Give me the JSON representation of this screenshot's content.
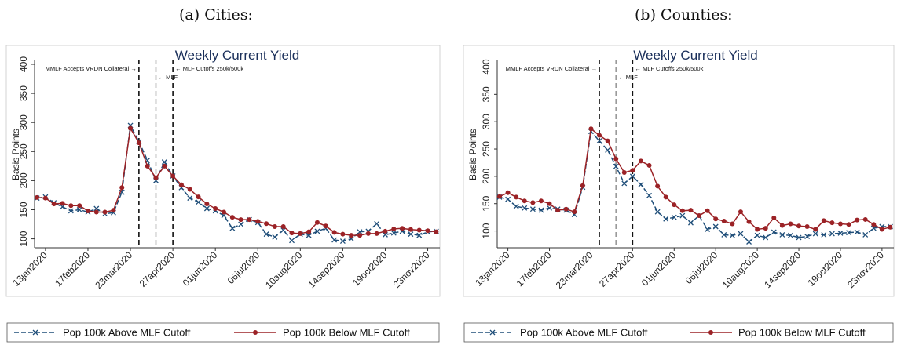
{
  "panels": [
    {
      "caption": "(a) Cities:"
    },
    {
      "caption": "(b) Counties:"
    }
  ],
  "colors": {
    "above": "#1f4e79",
    "below": "#9b2226",
    "title": "#1a2f5a",
    "event_dark": "#111111",
    "event_light": "#9a9a9a"
  },
  "chart_data": [
    {
      "type": "line",
      "title": "Weekly Current Yield",
      "ylabel": "Basis Points",
      "xlabel": "",
      "ylim": [
        90,
        400
      ],
      "yticks": [
        100,
        150,
        200,
        250,
        300,
        350,
        400
      ],
      "x_ticks": [
        "13jan2020",
        "17feb2020",
        "23mar2020",
        "27apr2020",
        "01jun2020",
        "06jul2020",
        "10aug2020",
        "14sep2020",
        "19oct2020",
        "23nov2020"
      ],
      "x": [
        "06jan2020",
        "13jan2020",
        "20jan2020",
        "27jan2020",
        "03feb2020",
        "10feb2020",
        "17feb2020",
        "24feb2020",
        "02mar2020",
        "09mar2020",
        "16mar2020",
        "23mar2020",
        "30mar2020",
        "06apr2020",
        "13apr2020",
        "20apr2020",
        "27apr2020",
        "04may2020",
        "11may2020",
        "18may2020",
        "25may2020",
        "01jun2020",
        "08jun2020",
        "15jun2020",
        "22jun2020",
        "29jun2020",
        "06jul2020",
        "13jul2020",
        "20jul2020",
        "27jul2020",
        "03aug2020",
        "10aug2020",
        "17aug2020",
        "24aug2020",
        "31aug2020",
        "07sep2020",
        "14sep2020",
        "21sep2020",
        "28sep2020",
        "05oct2020",
        "12oct2020",
        "19oct2020",
        "26oct2020",
        "02nov2020",
        "09nov2020",
        "16nov2020",
        "23nov2020",
        "30nov2020"
      ],
      "grid": false,
      "legend_position": "bottom",
      "event_lines": [
        {
          "date": "30mar2020",
          "label": "MMLF Accepts VRDN Collateral →",
          "style": "dark",
          "side": "left"
        },
        {
          "date": "13apr2020",
          "label": "← MLF",
          "style": "light",
          "side": "right"
        },
        {
          "date": "27apr2020",
          "label": "← MLF Cutoffs 250k/500k",
          "style": "dark",
          "side": "right"
        }
      ],
      "series": [
        {
          "name": "Pop 100k Above MLF Cutoff",
          "marker": "x",
          "dash": true,
          "values": [
            170,
            172,
            162,
            155,
            148,
            150,
            146,
            152,
            143,
            145,
            180,
            295,
            267,
            235,
            200,
            232,
            208,
            188,
            170,
            163,
            152,
            148,
            140,
            118,
            125,
            133,
            128,
            108,
            103,
            115,
            97,
            108,
            106,
            113,
            118,
            98,
            96,
            100,
            112,
            113,
            126,
            107,
            110,
            113,
            108,
            106,
            112,
            113
          ]
        },
        {
          "name": "Pop 100k Below MLF Cutoff",
          "marker": "o",
          "dash": false,
          "values": [
            171,
            170,
            160,
            161,
            157,
            157,
            148,
            146,
            146,
            149,
            188,
            290,
            265,
            225,
            205,
            225,
            208,
            193,
            185,
            172,
            160,
            152,
            146,
            137,
            133,
            133,
            130,
            126,
            121,
            121,
            110,
            109,
            112,
            128,
            122,
            111,
            108,
            106,
            106,
            109,
            109,
            113,
            117,
            118,
            116,
            115,
            114,
            112
          ]
        }
      ]
    },
    {
      "type": "line",
      "title": "Weekly Current Yield",
      "ylabel": "Basis Points",
      "xlabel": "",
      "ylim": [
        75,
        405
      ],
      "yticks": [
        100,
        150,
        200,
        250,
        300,
        350,
        400
      ],
      "x_ticks": [
        "13jan2020",
        "17feb2020",
        "23mar2020",
        "27apr2020",
        "01jun2020",
        "06jul2020",
        "10aug2020",
        "14sep2020",
        "19oct2020",
        "23nov2020"
      ],
      "x": [
        "06jan2020",
        "13jan2020",
        "20jan2020",
        "27jan2020",
        "03feb2020",
        "10feb2020",
        "17feb2020",
        "24feb2020",
        "02mar2020",
        "09mar2020",
        "16mar2020",
        "23mar2020",
        "30mar2020",
        "06apr2020",
        "13apr2020",
        "20apr2020",
        "27apr2020",
        "04may2020",
        "11may2020",
        "18may2020",
        "25may2020",
        "01jun2020",
        "08jun2020",
        "15jun2020",
        "22jun2020",
        "29jun2020",
        "06jul2020",
        "13jul2020",
        "20jul2020",
        "27jul2020",
        "03aug2020",
        "10aug2020",
        "17aug2020",
        "24aug2020",
        "31aug2020",
        "07sep2020",
        "14sep2020",
        "21sep2020",
        "28sep2020",
        "05oct2020",
        "12oct2020",
        "19oct2020",
        "26oct2020",
        "02nov2020",
        "09nov2020",
        "16nov2020",
        "23nov2020",
        "30nov2020"
      ],
      "grid": false,
      "legend_position": "bottom",
      "event_lines": [
        {
          "date": "30mar2020",
          "label": "MMLF Accepts VRDN Collateral →",
          "style": "dark",
          "side": "left"
        },
        {
          "date": "13apr2020",
          "label": "← MLF",
          "style": "light",
          "side": "right"
        },
        {
          "date": "27apr2020",
          "label": "← MLF Cutoffs 250k/500k",
          "style": "dark",
          "side": "right"
        }
      ],
      "series": [
        {
          "name": "Pop 100k Above MLF Cutoff",
          "marker": "x",
          "dash": true,
          "values": [
            162,
            158,
            145,
            142,
            140,
            138,
            142,
            140,
            138,
            130,
            180,
            282,
            265,
            248,
            218,
            187,
            200,
            185,
            165,
            135,
            122,
            125,
            128,
            115,
            128,
            103,
            108,
            93,
            92,
            95,
            80,
            92,
            88,
            98,
            93,
            92,
            88,
            90,
            95,
            93,
            95,
            96,
            97,
            98,
            93,
            105,
            108,
            108
          ]
        },
        {
          "name": "Pop 100k Below MLF Cutoff",
          "marker": "o",
          "dash": false,
          "values": [
            163,
            170,
            162,
            155,
            152,
            155,
            150,
            138,
            140,
            135,
            183,
            287,
            275,
            265,
            232,
            207,
            211,
            228,
            220,
            182,
            162,
            148,
            137,
            138,
            128,
            137,
            122,
            118,
            113,
            135,
            117,
            103,
            105,
            124,
            110,
            113,
            109,
            108,
            103,
            119,
            115,
            113,
            112,
            120,
            121,
            112,
            103,
            107
          ]
        }
      ]
    }
  ]
}
